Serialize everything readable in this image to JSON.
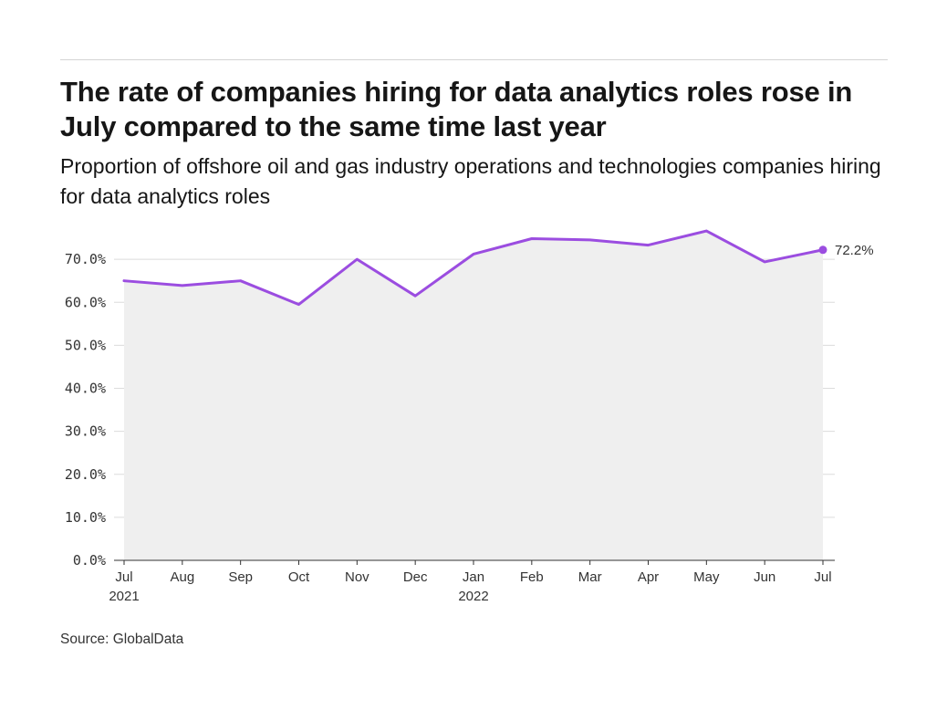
{
  "title": "The rate of companies hiring for data analytics roles rose in July compared to the same time last year",
  "subtitle": "Proportion of offshore oil and gas industry operations and technologies companies hiring for data analytics roles",
  "source": "Source: GlobalData",
  "colors": {
    "line": "#9b4de0",
    "area": "#efefef",
    "grid": "#dcdcdc",
    "axis": "#333333"
  },
  "chart_data": {
    "type": "area",
    "title": "The rate of companies hiring for data analytics roles rose in July compared to the same time last year",
    "subtitle": "Proportion of offshore oil and gas industry operations and technologies companies hiring for data analytics roles",
    "xlabel": "",
    "ylabel": "",
    "categories": [
      "Jul 2021",
      "Aug 2021",
      "Sep 2021",
      "Oct 2021",
      "Nov 2021",
      "Dec 2021",
      "Jan 2022",
      "Feb 2022",
      "Mar 2022",
      "Apr 2022",
      "May 2022",
      "Jun 2022",
      "Jul 2022"
    ],
    "x_tick_labels": [
      {
        "month": "Jul",
        "year": "2021"
      },
      {
        "month": "Aug",
        "year": ""
      },
      {
        "month": "Sep",
        "year": ""
      },
      {
        "month": "Oct",
        "year": ""
      },
      {
        "month": "Nov",
        "year": ""
      },
      {
        "month": "Dec",
        "year": ""
      },
      {
        "month": "Jan",
        "year": "2022"
      },
      {
        "month": "Feb",
        "year": ""
      },
      {
        "month": "Mar",
        "year": ""
      },
      {
        "month": "Apr",
        "year": ""
      },
      {
        "month": "May",
        "year": ""
      },
      {
        "month": "Jun",
        "year": ""
      },
      {
        "month": "Jul",
        "year": ""
      }
    ],
    "series": [
      {
        "values": [
          65.0,
          63.9,
          65.0,
          59.5,
          70.0,
          61.5,
          71.2,
          74.8,
          74.5,
          73.3,
          76.6,
          69.4,
          72.2
        ]
      }
    ],
    "ylim": [
      0,
      80
    ],
    "y_ticks": [
      0,
      10,
      20,
      30,
      40,
      50,
      60,
      70
    ],
    "y_tick_labels": [
      "0.0%",
      "10.0%",
      "20.0%",
      "30.0%",
      "40.0%",
      "50.0%",
      "60.0%",
      "70.0%"
    ],
    "end_label": "72.2%",
    "grid": true,
    "legend": "none"
  }
}
